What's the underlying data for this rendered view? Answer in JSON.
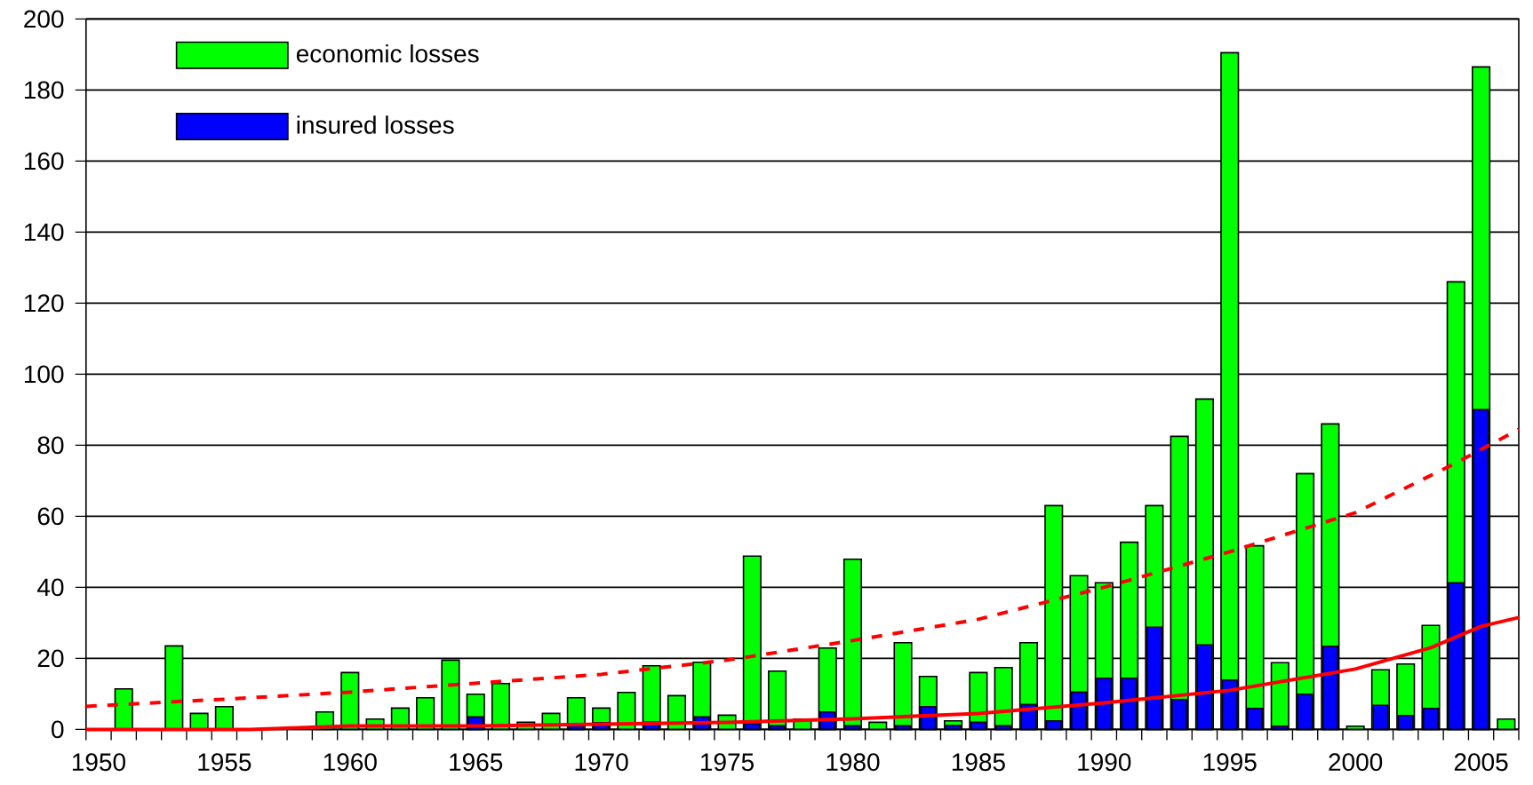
{
  "chart_data": {
    "type": "bar",
    "x": [
      1951,
      1953,
      1954,
      1955,
      1959,
      1960,
      1961,
      1962,
      1963,
      1964,
      1965,
      1966,
      1967,
      1968,
      1969,
      1970,
      1971,
      1972,
      1973,
      1974,
      1975,
      1976,
      1977,
      1978,
      1979,
      1980,
      1981,
      1982,
      1983,
      1984,
      1985,
      1986,
      1987,
      1988,
      1989,
      1990,
      1991,
      1992,
      1993,
      1994,
      1995,
      1996,
      1997,
      1998,
      1999,
      2000,
      2001,
      2002,
      2003,
      2004,
      2005,
      2006
    ],
    "series": [
      {
        "name": "economic losses",
        "color": "#00ff00",
        "values": [
          11.4,
          23.5,
          4.5,
          6.4,
          4.9,
          16.0,
          2.9,
          6.0,
          8.9,
          19.5,
          9.9,
          12.9,
          2.0,
          4.5,
          8.9,
          6.0,
          10.4,
          17.9,
          9.5,
          18.9,
          4.0,
          48.8,
          16.4,
          2.9,
          22.9,
          47.9,
          2.0,
          24.4,
          14.9,
          2.4,
          16.0,
          17.4,
          24.4,
          63,
          43.3,
          41.3,
          52.7,
          63,
          82.5,
          93,
          190.5,
          51.7,
          18.8,
          72,
          86,
          0.9,
          16.8,
          18.4,
          29.3,
          126,
          186.5,
          2.9
        ]
      },
      {
        "name": "insured losses",
        "color": "#0000ff",
        "values": [
          null,
          null,
          null,
          null,
          null,
          null,
          null,
          null,
          null,
          null,
          3.5,
          null,
          null,
          null,
          1,
          1.9,
          null,
          2,
          null,
          3.5,
          null,
          1.6,
          1,
          null,
          4.9,
          1,
          null,
          1,
          6.4,
          1.1,
          2,
          1,
          7,
          2.4,
          10.5,
          14.4,
          14.4,
          28.8,
          8.4,
          23.8,
          13.9,
          5.9,
          0.9,
          9.9,
          23.4,
          null,
          6.8,
          3.9,
          5.9,
          41.3,
          90,
          null
        ]
      },
      {
        "type": "line",
        "color": "#ff0000",
        "line_style": "dashed",
        "x": [
          1949.5,
          1955,
          1960,
          1965,
          1970,
          1975,
          1980,
          1985,
          1990,
          1995,
          2000,
          2004,
          2006.5
        ],
        "values": [
          6.5,
          8.5,
          10.5,
          13,
          15.5,
          19.5,
          25,
          31,
          40,
          50,
          61,
          75,
          84.5
        ]
      },
      {
        "type": "line",
        "color": "#ff0000",
        "line_style": "solid",
        "x": [
          1949.5,
          1956,
          1960,
          1965,
          1970,
          1975,
          1980,
          1985,
          1990,
          1995,
          2000,
          2003,
          2005,
          2006.5
        ],
        "values": [
          0,
          0,
          1,
          1,
          1.5,
          2,
          3,
          4.5,
          7.5,
          11,
          17,
          23,
          29,
          31.5
        ]
      }
    ],
    "xlim": [
      1949.5,
      2006.5
    ],
    "xticks": [
      1950,
      1955,
      1960,
      1965,
      1970,
      1975,
      1980,
      1985,
      1990,
      1995,
      2000,
      2005
    ],
    "ylim": [
      0,
      200
    ],
    "yticks": [
      0,
      20,
      40,
      60,
      80,
      100,
      120,
      140,
      160,
      180,
      200
    ],
    "grid": "y",
    "legend": "top left",
    "marker": "none"
  }
}
